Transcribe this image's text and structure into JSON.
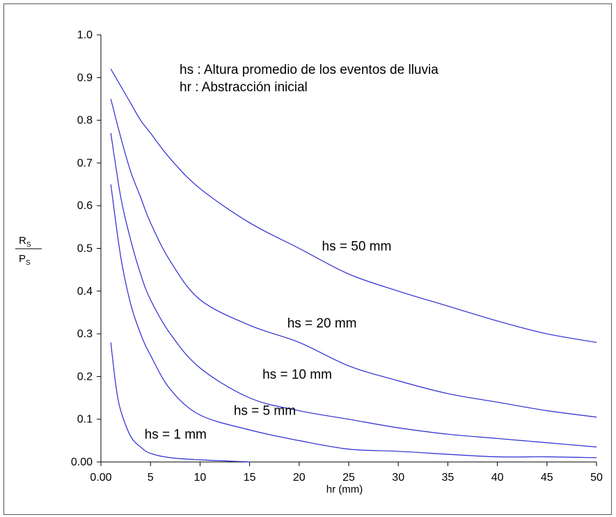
{
  "chart_data": {
    "type": "line",
    "title": "",
    "xlabel": "hr (mm)",
    "ylabel": {
      "numerator": "R",
      "numerator_sub": "S",
      "denominator": "P",
      "denominator_sub": "S"
    },
    "xlim": [
      0,
      50
    ],
    "ylim": [
      0,
      1
    ],
    "x_ticks": [
      0,
      5,
      10,
      15,
      20,
      25,
      30,
      35,
      40,
      45,
      50
    ],
    "x_tick_labels": [
      "0.00",
      "5",
      "10",
      "15",
      "20",
      "25",
      "30",
      "35",
      "40",
      "45",
      "50"
    ],
    "y_ticks": [
      0,
      0.1,
      0.2,
      0.3,
      0.4,
      0.5,
      0.6,
      0.7,
      0.8,
      0.9,
      1.0
    ],
    "y_tick_labels": [
      "0.00",
      "0.1",
      "0.2",
      "0.3",
      "0.4",
      "0.5",
      "0.6",
      "0.7",
      "0.8",
      "0.9",
      "1.0"
    ],
    "grid": false,
    "legend_lines": [
      "hs : Altura promedio de los eventos de lluvia",
      "hr : Abstracción inicial"
    ],
    "line_color": "#2a2ad0",
    "series": [
      {
        "name": "hs = 50 mm",
        "x": [
          1,
          2,
          3,
          4,
          5,
          7,
          10,
          15,
          20,
          25,
          30,
          35,
          40,
          45,
          50
        ],
        "y": [
          0.92,
          0.88,
          0.84,
          0.8,
          0.77,
          0.71,
          0.64,
          0.56,
          0.5,
          0.44,
          0.4,
          0.365,
          0.33,
          0.3,
          0.28
        ]
      },
      {
        "name": "hs = 20 mm",
        "x": [
          1,
          2,
          3,
          4,
          5,
          7,
          10,
          15,
          20,
          25,
          30,
          35,
          40,
          45,
          50
        ],
        "y": [
          0.85,
          0.76,
          0.68,
          0.62,
          0.56,
          0.47,
          0.38,
          0.32,
          0.28,
          0.225,
          0.19,
          0.16,
          0.14,
          0.12,
          0.105
        ]
      },
      {
        "name": "hs = 10 mm",
        "x": [
          1,
          2,
          3,
          4,
          5,
          7,
          10,
          15,
          20,
          25,
          30,
          35,
          40,
          45,
          50
        ],
        "y": [
          0.77,
          0.62,
          0.52,
          0.44,
          0.38,
          0.3,
          0.22,
          0.15,
          0.12,
          0.1,
          0.08,
          0.065,
          0.055,
          0.045,
          0.035
        ]
      },
      {
        "name": "hs = 5 mm",
        "x": [
          1,
          2,
          3,
          4,
          5,
          7,
          10,
          15,
          20,
          25,
          30,
          35,
          40,
          45,
          50
        ],
        "y": [
          0.65,
          0.48,
          0.37,
          0.3,
          0.25,
          0.17,
          0.11,
          0.075,
          0.05,
          0.03,
          0.025,
          0.018,
          0.012,
          0.012,
          0.01
        ]
      },
      {
        "name": "hs = 1 mm",
        "x": [
          1,
          1.5,
          2,
          3,
          4,
          5,
          7,
          10,
          15
        ],
        "y": [
          0.28,
          0.18,
          0.12,
          0.06,
          0.035,
          0.02,
          0.01,
          0.005,
          0.0
        ]
      }
    ],
    "series_label_positions": "near curves"
  }
}
